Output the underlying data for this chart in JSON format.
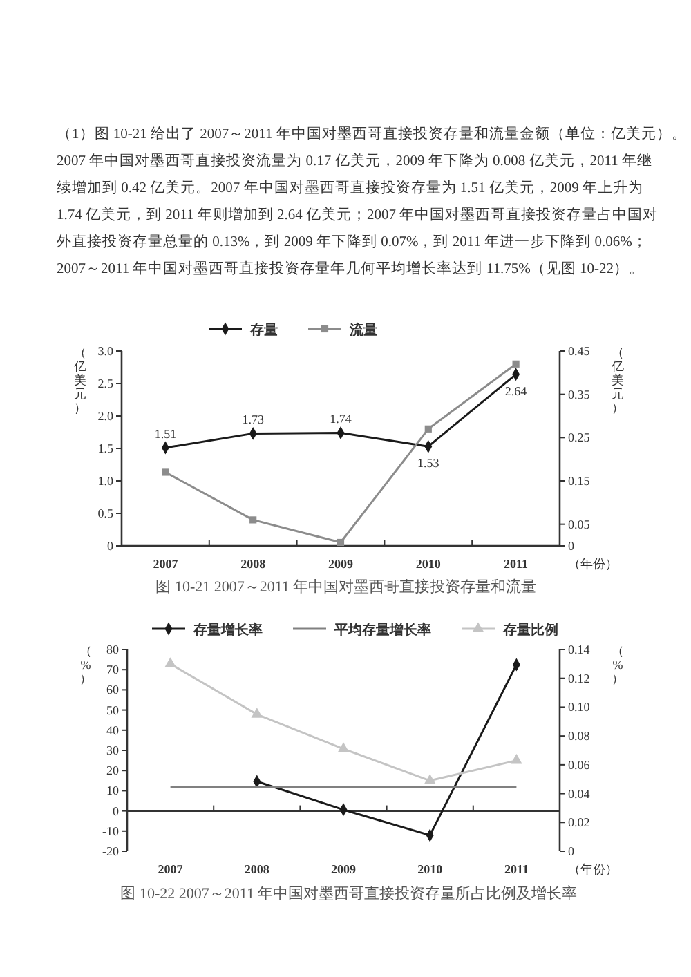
{
  "chart_data": [
    {
      "type": "line",
      "title": "图 10-21 2007～2011 年中国对墨西哥直接投资存量和流量",
      "annotations": [
        "（1）图 10-21 给出了 2007～2011 年中国对墨西哥直接投资存量和流量金额（单位：亿美元）。2007 年中国对墨西哥直接投资流量为 0.17 亿美元，2009 年下降为 0.008 亿美元，2011 年继续增加到 0.42 亿美元。2007 年中国对墨西哥直接投资存量为 1.51 亿美元，2009 年上升为 1.74 亿美元，到 2011 年则增加到 2.64 亿美元；2007 年中国对墨西哥直接投资存量占中国对外直接投资存量总量的 0.13%，到 2009 年下降到 0.07%，到 2011 年进一步下降到 0.06%；2007～2011 年中国对墨西哥直接投资存量年几何平均增长率达到 11.75%（见图 10-22）。"
      ],
      "xlabel": "（年份）",
      "ylabel": "（亿美元）",
      "y2label": "（亿美元）",
      "categories": [
        "2007",
        "2008",
        "2009",
        "2010",
        "2011"
      ],
      "series": [
        {
          "name": "存量",
          "color": "#1a1a1a",
          "marker": "diamond",
          "values": [
            1.51,
            1.73,
            1.74,
            1.53,
            2.64
          ],
          "value_labels": [
            "1.51",
            "1.73",
            "1.74",
            "1.53",
            "2.64"
          ]
        },
        {
          "name": "流量",
          "color": "#8c8c8c",
          "marker": "square",
          "axis": "y2",
          "values": [
            0.17,
            0.06,
            0.008,
            0.27,
            0.42
          ]
        }
      ],
      "ylim": [
        0,
        3
      ],
      "yticks": [
        0,
        0.5,
        {
          "value": 1,
          "label": "1.0"
        },
        1.5,
        {
          "value": 2,
          "label": "2.0"
        },
        2.5,
        {
          "value": 3,
          "label": "3.0"
        }
      ],
      "y2lim": [
        0,
        0.45
      ],
      "y2ticks": [
        0,
        0.05,
        0.15,
        0.25,
        0.35,
        0.45
      ],
      "grid": false,
      "legend": "top",
      "line_style": "solid"
    },
    {
      "type": "line",
      "title": "图 10-22 2007～2011 年中国对墨西哥直接投资存量所占比例及增长率",
      "xlabel": "（年份）",
      "ylabel": "（%）",
      "y2label": "（%）",
      "categories": [
        "2007",
        "2008",
        "2009",
        "2010",
        "2011"
      ],
      "series": [
        {
          "name": "存量增长率",
          "color": "#1a1a1a",
          "marker": "diamond",
          "values": [
            null,
            14.6,
            0.6,
            -12.1,
            72.5
          ]
        },
        {
          "name": "平均存量增长率",
          "color": "#808080",
          "marker": "none",
          "values": [
            11.75,
            11.75,
            11.75,
            11.75,
            11.75
          ]
        },
        {
          "name": "存量比例",
          "color": "#c4c4c4",
          "marker": "triangle",
          "axis": "y2",
          "values": [
            0.13,
            0.095,
            0.071,
            0.049,
            0.063
          ]
        }
      ],
      "ref_lines": [
        {
          "axis": "y",
          "value": 0
        }
      ],
      "ylim": [
        -20,
        80
      ],
      "yticks": [
        -20,
        -10,
        0,
        10,
        20,
        30,
        40,
        50,
        60,
        70,
        80
      ],
      "y2lim": [
        0,
        0.14
      ],
      "y2ticks": [
        0,
        0.02,
        0.04,
        0.06,
        0.08,
        {
          "value": 0.1,
          "label": "0.10"
        },
        0.12,
        0.14
      ],
      "grid": false,
      "legend": "top",
      "line_style": "solid"
    }
  ]
}
